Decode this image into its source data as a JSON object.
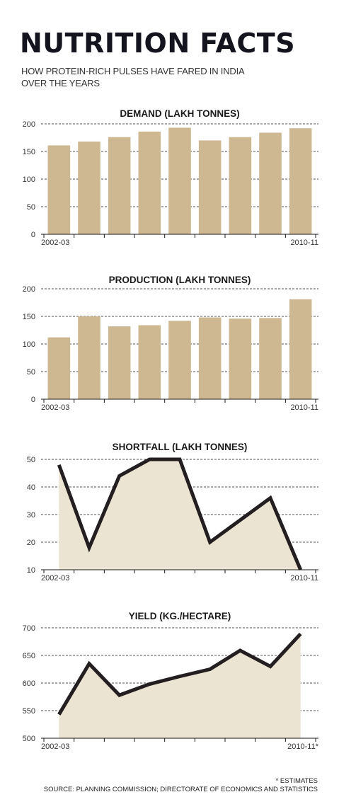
{
  "header": {
    "title": "NUTRITION FACTS",
    "subtitle": "HOW PROTEIN-RICH PULSES HAVE FARED IN INDIA OVER THE YEARS"
  },
  "footer": {
    "footnote": "* ESTIMATES",
    "source": "SOURCE: PLANNING COMMISSION; DIRECTORATE OF ECONOMICS AND STATISTICS"
  },
  "colors": {
    "bar": "#cdb892",
    "area": "#ece4d2",
    "line": "#231f20"
  },
  "chart_data": [
    {
      "type": "bar",
      "title": "DEMAND (LAKH TONNES)",
      "categories": [
        "2002-03",
        "",
        "",
        "",
        "",
        "",
        "",
        "",
        "2010-11"
      ],
      "values": [
        161,
        168,
        176,
        186,
        193,
        170,
        176,
        184,
        192
      ],
      "ylim": [
        0,
        200
      ],
      "yticks": [
        0,
        50,
        100,
        150,
        200
      ],
      "xtick_labels": [
        "2002-03",
        "2010-11"
      ],
      "grid": true
    },
    {
      "type": "bar",
      "title": "PRODUCTION (LAKH TONNES)",
      "categories": [
        "2002-03",
        "",
        "",
        "",
        "",
        "",
        "",
        "",
        "2010-11"
      ],
      "values": [
        112,
        150,
        132,
        134,
        142,
        148,
        146,
        147,
        181
      ],
      "ylim": [
        0,
        200
      ],
      "yticks": [
        0,
        50,
        100,
        150,
        200
      ],
      "xtick_labels": [
        "2002-03",
        "2010-11"
      ],
      "grid": true
    },
    {
      "type": "area",
      "title": "SHORTFALL (LAKH TONNES)",
      "categories": [
        "2002-03",
        "",
        "",
        "",
        "",
        "",
        "",
        "",
        "2010-11"
      ],
      "values": [
        48,
        18,
        44,
        50,
        50,
        20,
        28,
        36,
        10
      ],
      "ylim": [
        10,
        50
      ],
      "yticks": [
        10,
        20,
        30,
        40,
        50
      ],
      "xtick_labels": [
        "2002-03",
        "2010-11"
      ],
      "grid": true
    },
    {
      "type": "area",
      "title": "YIELD (KG./HECTARE)",
      "categories": [
        "2002-03",
        "",
        "",
        "",
        "",
        "",
        "",
        "",
        "2010-11*"
      ],
      "values": [
        543,
        635,
        578,
        598,
        612,
        625,
        659,
        630,
        689
      ],
      "ylim": [
        500,
        700
      ],
      "yticks": [
        500,
        550,
        600,
        650,
        700
      ],
      "xtick_labels": [
        "2002-03",
        "2010-11*"
      ],
      "grid": true
    }
  ]
}
